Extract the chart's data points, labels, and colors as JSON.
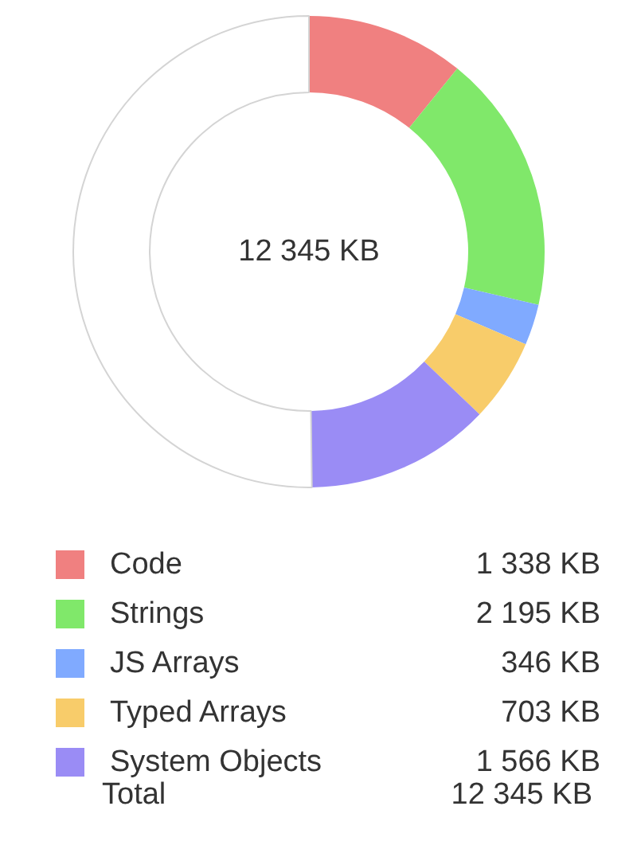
{
  "chart_data": {
    "type": "donut",
    "title": "12 345 KB",
    "categories": [
      "Code",
      "Strings",
      "JS Arrays",
      "Typed Arrays",
      "System Objects",
      null
    ],
    "values": [
      1338,
      2195,
      346,
      703,
      1566,
      6197
    ],
    "value_labels": [
      "1 338 KB",
      "2 195 KB",
      "346 KB",
      "703 KB",
      "1 566 KB",
      null
    ],
    "colors": [
      "#f08080",
      "#80e86a",
      "#80aaff",
      "#f8cc6a",
      "#9a8cf5",
      "#ffffff"
    ],
    "legend": "bottom",
    "annotations": [
      "Total",
      "12 345 KB"
    ]
  }
}
